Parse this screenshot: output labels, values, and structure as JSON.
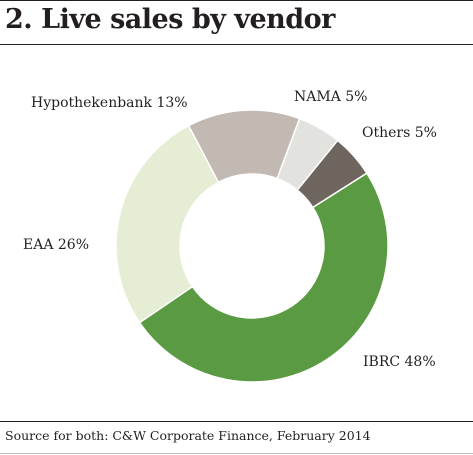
{
  "chart_data": {
    "type": "pie",
    "donut": true,
    "title": "2. Live sales by vendor",
    "source": "Source for both: C&W Corporate Finance, February 2014",
    "slices": [
      {
        "label": "IBRC 48%",
        "name": "IBRC",
        "value": 48,
        "color": "#5a9a42"
      },
      {
        "label": "EAA 26%",
        "name": "EAA",
        "value": 26,
        "color": "#e5eed5"
      },
      {
        "label": "Hypothekenbank 13%",
        "name": "Hypothekenbank",
        "value": 13,
        "color": "#c2b9b3"
      },
      {
        "label": "NAMA 5%",
        "name": "NAMA",
        "value": 5,
        "color": "#e2e2df"
      },
      {
        "label": "Others 5%",
        "name": "Others",
        "value": 5,
        "color": "#6e655e"
      }
    ]
  }
}
